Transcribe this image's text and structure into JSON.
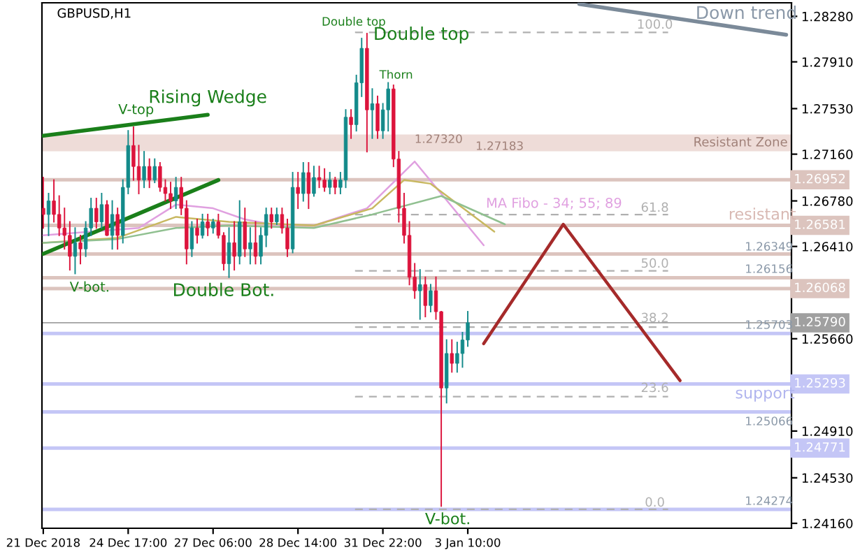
{
  "chart_data": {
    "type": "candlestick",
    "title": "GBPUSD,H1",
    "categories": [
      "21 Dec 2018",
      null,
      null,
      null,
      null,
      null,
      null,
      null,
      null,
      null,
      null,
      null,
      null,
      null,
      null,
      null,
      "24 Dec 17:00",
      null,
      null,
      null,
      null,
      null,
      null,
      null,
      null,
      null,
      null,
      null,
      null,
      null,
      null,
      null,
      "27 Dec 06:00",
      null,
      null,
      null,
      null,
      null,
      null,
      null,
      null,
      null,
      null,
      null,
      null,
      null,
      null,
      null,
      "28 Dec 14:00",
      null,
      null,
      null,
      null,
      null,
      null,
      null,
      null,
      null,
      null,
      null,
      null,
      null,
      null,
      null,
      "31 Dec 22:00",
      null,
      null,
      null,
      null,
      null,
      null,
      null,
      null,
      null,
      null,
      null,
      null,
      null,
      null,
      null,
      "3 Jan 10:00",
      null,
      null,
      null,
      null,
      null,
      null,
      null,
      null,
      null,
      null,
      null,
      null,
      null,
      null,
      null,
      null,
      null,
      null,
      null,
      null,
      null,
      null,
      null,
      null,
      null,
      null,
      null,
      null,
      null,
      null,
      null,
      null,
      null,
      null,
      null,
      null,
      null,
      null,
      null,
      null,
      null,
      null,
      null,
      null,
      null,
      null,
      null,
      null,
      null,
      null,
      null,
      null,
      null,
      null,
      null,
      null,
      null,
      null,
      null,
      null
    ],
    "ohlc": [
      [
        1.2672,
        1.2697,
        1.2656,
        1.2667
      ],
      [
        1.2667,
        1.2684,
        1.265,
        1.2678
      ],
      [
        1.2678,
        1.2695,
        1.2661,
        1.2667
      ],
      [
        1.2667,
        1.2682,
        1.265,
        1.2656
      ],
      [
        1.2656,
        1.2672,
        1.2639,
        1.265
      ],
      [
        1.265,
        1.2661,
        1.2622,
        1.2633
      ],
      [
        1.2633,
        1.2656,
        1.2619,
        1.2644
      ],
      [
        1.2644,
        1.265,
        1.2627,
        1.2639
      ],
      [
        1.2639,
        1.2661,
        1.2633,
        1.2656
      ],
      [
        1.2656,
        1.268,
        1.265,
        1.2672
      ],
      [
        1.2672,
        1.268,
        1.2656,
        1.2661
      ],
      [
        1.2661,
        1.2684,
        1.2656,
        1.2675
      ],
      [
        1.2675,
        1.2678,
        1.265,
        1.265
      ],
      [
        1.265,
        1.2678,
        1.2639,
        1.2667
      ],
      [
        1.2667,
        1.2672,
        1.2639,
        1.265
      ],
      [
        1.265,
        1.2695,
        1.2644,
        1.2689
      ],
      [
        1.2689,
        1.2735,
        1.2684,
        1.2723
      ],
      [
        1.2723,
        1.2738,
        1.2695,
        1.2706
      ],
      [
        1.2706,
        1.2723,
        1.2684,
        1.2695
      ],
      [
        1.2695,
        1.2718,
        1.2689,
        1.2706
      ],
      [
        1.2706,
        1.2712,
        1.2689,
        1.2695
      ],
      [
        1.2695,
        1.2712,
        1.2693,
        1.2706
      ],
      [
        1.2706,
        1.2709,
        1.2686,
        1.2689
      ],
      [
        1.2689,
        1.2695,
        1.2678,
        1.2684
      ],
      [
        1.2684,
        1.2693,
        1.2672,
        1.2678
      ],
      [
        1.2678,
        1.2697,
        1.2672,
        1.2689
      ],
      [
        1.2689,
        1.2697,
        1.2667,
        1.2672
      ],
      [
        1.2672,
        1.2678,
        1.2627,
        1.2639
      ],
      [
        1.2639,
        1.2661,
        1.2633,
        1.2656
      ],
      [
        1.2656,
        1.2663,
        1.2644,
        1.265
      ],
      [
        1.265,
        1.2667,
        1.2648,
        1.2661
      ],
      [
        1.2661,
        1.2667,
        1.265,
        1.2656
      ],
      [
        1.2656,
        1.2663,
        1.2652,
        1.2661
      ],
      [
        1.2661,
        1.2667,
        1.2648,
        1.265
      ],
      [
        1.265,
        1.2652,
        1.2622,
        1.2627
      ],
      [
        1.2627,
        1.2656,
        1.2616,
        1.2644
      ],
      [
        1.2644,
        1.2661,
        1.2622,
        1.2633
      ],
      [
        1.2633,
        1.2678,
        1.2627,
        1.2661
      ],
      [
        1.2661,
        1.2672,
        1.2633,
        1.2639
      ],
      [
        1.2639,
        1.2656,
        1.2627,
        1.2644
      ],
      [
        1.2644,
        1.2661,
        1.2627,
        1.2633
      ],
      [
        1.2633,
        1.2656,
        1.2627,
        1.265
      ],
      [
        1.265,
        1.2672,
        1.2641,
        1.2667
      ],
      [
        1.2667,
        1.2672,
        1.2656,
        1.2661
      ],
      [
        1.2661,
        1.2672,
        1.2659,
        1.2667
      ],
      [
        1.2667,
        1.2672,
        1.2652,
        1.2656
      ],
      [
        1.2656,
        1.2663,
        1.2633,
        1.2639
      ],
      [
        1.2639,
        1.2701,
        1.2636,
        1.2689
      ],
      [
        1.2689,
        1.2701,
        1.2672,
        1.2684
      ],
      [
        1.2684,
        1.2709,
        1.2678,
        1.2701
      ],
      [
        1.2701,
        1.2709,
        1.2672,
        1.2684
      ],
      [
        1.2684,
        1.2706,
        1.2682,
        1.2697
      ],
      [
        1.2697,
        1.2706,
        1.2689,
        1.2695
      ],
      [
        1.2695,
        1.2704,
        1.2686,
        1.2689
      ],
      [
        1.2689,
        1.2701,
        1.2684,
        1.2695
      ],
      [
        1.2695,
        1.2697,
        1.2684,
        1.2689
      ],
      [
        1.2689,
        1.2701,
        1.2684,
        1.2695
      ],
      [
        1.2695,
        1.2752,
        1.2689,
        1.2746
      ],
      [
        1.2746,
        1.2752,
        1.2729,
        1.274
      ],
      [
        1.274,
        1.278,
        1.2735,
        1.2774
      ],
      [
        1.2774,
        1.281,
        1.2763,
        1.2802
      ],
      [
        1.2802,
        1.2814,
        1.2718,
        1.2752
      ],
      [
        1.2752,
        1.2769,
        1.2729,
        1.2757
      ],
      [
        1.2757,
        1.2763,
        1.2729,
        1.2735
      ],
      [
        1.2735,
        1.2757,
        1.2729,
        1.2752
      ],
      [
        1.2752,
        1.2774,
        1.2735,
        1.2769
      ],
      [
        1.2769,
        1.2772,
        1.2706,
        1.2712
      ],
      [
        1.2712,
        1.2718,
        1.2661,
        1.2672
      ],
      [
        1.2672,
        1.2684,
        1.2644,
        1.265
      ],
      [
        1.265,
        1.2661,
        1.261,
        1.2616
      ],
      [
        1.2616,
        1.2627,
        1.2599,
        1.2605
      ],
      [
        1.2605,
        1.2622,
        1.2582,
        1.261
      ],
      [
        1.261,
        1.2616,
        1.2584,
        1.2593
      ],
      [
        1.2593,
        1.261,
        1.2588,
        1.2605
      ],
      [
        1.2605,
        1.2616,
        1.2582,
        1.2588
      ],
      [
        1.2588,
        1.2588,
        1.243,
        1.2526
      ],
      [
        1.2526,
        1.2565,
        1.2514,
        1.2554
      ],
      [
        1.2554,
        1.2565,
        1.2539,
        1.2546
      ],
      [
        1.2546,
        1.2563,
        1.2539,
        1.2554
      ],
      [
        1.2554,
        1.2571,
        1.2543,
        1.2565
      ],
      [
        1.2565,
        1.2588,
        1.256,
        1.2579
      ],
      null,
      null,
      null,
      null,
      null,
      null,
      null,
      null,
      null,
      null,
      null,
      null,
      null,
      null,
      null,
      null,
      null,
      null,
      null,
      null,
      null,
      null,
      null,
      null,
      null,
      null,
      null,
      null,
      null,
      null,
      null,
      null,
      null,
      null,
      null,
      null,
      null,
      null,
      null,
      null,
      null,
      null,
      null,
      null,
      null,
      null,
      null,
      null,
      null,
      null,
      null,
      null,
      null,
      null,
      null,
      null,
      null,
      null,
      null,
      null
    ],
    "colors": [
      "#dc143c",
      "#138a8a",
      "#dc143c",
      "#dc143c",
      "#dc143c",
      "#dc143c",
      "#138a8a",
      "#dc143c",
      "#138a8a",
      "#138a8a",
      "#dc143c",
      "#138a8a",
      "#dc143c",
      "#138a8a",
      "#dc143c",
      "#138a8a",
      "#138a8a",
      "#dc143c",
      "#dc143c",
      "#138a8a",
      "#dc143c",
      "#138a8a",
      "#dc143c",
      "#dc143c",
      "#dc143c",
      "#138a8a",
      "#dc143c",
      "#dc143c",
      "#138a8a",
      "#dc143c",
      "#138a8a",
      "#dc143c",
      "#138a8a",
      "#dc143c",
      "#dc143c",
      "#138a8a",
      "#dc143c",
      "#138a8a",
      "#dc143c",
      "#138a8a",
      "#dc143c",
      "#138a8a",
      "#138a8a",
      "#dc143c",
      "#138a8a",
      "#dc143c",
      "#dc143c",
      "#138a8a",
      "#dc143c",
      "#138a8a",
      "#dc143c",
      "#138a8a",
      "#dc143c",
      "#dc143c",
      "#138a8a",
      "#dc143c",
      "#138a8a",
      "#138a8a",
      "#dc143c",
      "#138a8a",
      "#138a8a",
      "#dc143c",
      "#138a8a",
      "#dc143c",
      "#138a8a",
      "#138a8a",
      "#dc143c",
      "#dc143c",
      "#dc143c",
      "#dc143c",
      "#dc143c",
      "#138a8a",
      "#dc143c",
      "#138a8a",
      "#dc143c",
      "#dc143c",
      "#138a8a",
      "#dc143c",
      "#138a8a",
      "#138a8a",
      "#138a8a",
      null,
      null,
      null,
      null,
      null,
      null,
      null,
      null,
      null,
      null,
      null,
      null,
      null,
      null,
      null,
      null,
      null,
      null,
      null,
      null,
      null,
      null,
      null,
      null,
      null,
      null,
      null,
      null,
      null,
      null,
      null,
      null,
      null,
      null,
      null,
      null,
      null,
      null,
      null,
      null,
      null,
      null,
      null,
      null,
      null,
      null,
      null,
      null,
      null,
      null,
      null,
      null,
      null,
      null,
      null,
      null,
      null,
      null,
      null,
      null
    ],
    "series": [
      {
        "type": "line",
        "color": "#e0a0e0",
        "values": [
          1.265,
          null,
          null,
          null,
          null,
          null,
          null,
          null,
          null,
          null,
          null,
          null,
          null,
          null,
          null,
          null,
          null,
          null,
          1.2656,
          null,
          null,
          null,
          null,
          null,
          null,
          1.2675,
          null,
          null,
          null,
          null,
          null,
          null,
          1.2672,
          null,
          null,
          null,
          null,
          null,
          1.2663,
          null,
          null,
          null,
          null,
          1.2659,
          null,
          null,
          null,
          null,
          null,
          null,
          null,
          1.2658,
          null,
          null,
          null,
          null,
          null,
          null,
          null,
          null,
          null,
          1.2672,
          null,
          null,
          null,
          null,
          null,
          null,
          null,
          null,
          1.271,
          null,
          null,
          null,
          null,
          null,
          null,
          null,
          null,
          null,
          null,
          null,
          null,
          1.2642,
          null,
          null,
          null,
          null,
          null,
          null,
          null,
          null,
          null,
          null,
          null,
          null,
          null,
          null,
          null,
          null,
          null,
          null,
          null,
          null,
          null,
          null,
          null,
          null,
          null,
          null,
          null,
          null,
          null,
          null,
          null,
          null,
          null,
          null,
          null,
          null,
          null,
          null,
          null,
          null,
          null,
          null,
          null,
          null,
          null,
          null,
          null,
          null,
          null,
          null,
          null,
          null,
          null,
          null,
          null,
          null,
          null
        ]
      },
      {
        "type": "line",
        "color": "#c8b860",
        "values": [
          1.2644,
          null,
          null,
          null,
          null,
          null,
          null,
          null,
          null,
          null,
          null,
          null,
          null,
          null,
          1.2648,
          null,
          null,
          null,
          null,
          null,
          null,
          null,
          null,
          null,
          null,
          1.2665,
          null,
          null,
          null,
          null,
          null,
          null,
          null,
          null,
          null,
          1.2661,
          null,
          null,
          null,
          null,
          null,
          null,
          null,
          null,
          null,
          null,
          null,
          null,
          null,
          null,
          null,
          1.2658,
          null,
          null,
          null,
          null,
          null,
          null,
          null,
          null,
          null,
          null,
          1.2672,
          null,
          null,
          null,
          null,
          null,
          1.2695,
          null,
          null,
          null,
          null,
          1.2692,
          null,
          null,
          null,
          null,
          null,
          null,
          null,
          null,
          null,
          null,
          null,
          1.2653,
          null,
          null,
          null,
          null,
          null,
          null,
          null,
          null,
          null,
          null,
          null,
          null,
          null,
          null,
          null,
          null,
          null,
          null,
          null,
          null,
          null,
          null,
          null,
          null,
          null,
          null,
          null,
          null,
          null,
          null,
          null,
          null,
          null,
          null,
          null,
          null,
          null,
          null,
          null,
          null,
          null,
          null,
          null,
          null,
          null,
          null,
          null,
          null,
          null,
          null,
          null,
          null,
          null,
          null,
          null
        ]
      },
      {
        "type": "line",
        "color": "#90c090",
        "values": [
          1.2644,
          null,
          null,
          null,
          null,
          null,
          null,
          null,
          null,
          null,
          null,
          null,
          null,
          null,
          1.2647,
          null,
          null,
          null,
          null,
          null,
          null,
          null,
          null,
          null,
          null,
          1.2656,
          null,
          null,
          null,
          null,
          null,
          null,
          null,
          null,
          null,
          1.2658,
          null,
          null,
          null,
          null,
          null,
          null,
          null,
          null,
          null,
          null,
          null,
          null,
          null,
          null,
          null,
          1.2656,
          null,
          null,
          null,
          null,
          null,
          null,
          null,
          null,
          null,
          null,
          1.2667,
          null,
          null,
          null,
          null,
          null,
          null,
          null,
          null,
          null,
          null,
          null,
          null,
          1.2682,
          null,
          null,
          null,
          null,
          null,
          null,
          null,
          null,
          null,
          null,
          null,
          1.2659,
          null,
          null,
          null,
          null,
          null,
          null,
          null,
          null,
          null,
          null,
          null,
          null,
          null,
          null,
          null,
          null,
          null,
          null,
          null,
          null,
          null,
          null,
          null,
          null,
          null,
          null,
          null,
          null,
          null,
          null,
          null,
          null,
          null,
          null,
          null,
          null,
          null,
          null,
          null,
          null,
          null,
          null,
          null,
          null,
          null,
          null,
          null,
          null,
          null,
          null,
          null,
          null,
          null
        ]
      },
      {
        "type": "line",
        "color": "#1a7f1a",
        "values": [
          1.2731,
          null,
          null,
          null,
          null,
          null,
          null,
          null,
          null,
          null,
          null,
          null,
          null,
          null,
          null,
          null,
          null,
          null,
          null,
          null,
          null,
          null,
          null,
          null,
          null,
          null,
          null,
          null,
          null,
          null,
          null,
          1.2748,
          null,
          null,
          null,
          null,
          null,
          null,
          null,
          null,
          null,
          null,
          null,
          null,
          null,
          null,
          null,
          null,
          null,
          null,
          null,
          null,
          null,
          null,
          null,
          null,
          null,
          null,
          null,
          null,
          null,
          null,
          null,
          null,
          null,
          null,
          null,
          null,
          null,
          null,
          null,
          null,
          null,
          null,
          null,
          null,
          null,
          null,
          null,
          null,
          null,
          null,
          null,
          null,
          null,
          null,
          null,
          null,
          null,
          null,
          null,
          null,
          null,
          null,
          null,
          null,
          null,
          null,
          null,
          null,
          null,
          null,
          null,
          null,
          null,
          null,
          null,
          null,
          null,
          null,
          null,
          null,
          null,
          null,
          null,
          null,
          null,
          null,
          null,
          null,
          null,
          null,
          null,
          null,
          null,
          null,
          null,
          null,
          null,
          null,
          null,
          null,
          null,
          null,
          null,
          null,
          null,
          null,
          null,
          null,
          null
        ]
      },
      {
        "type": "line",
        "color": "#1a7f1a",
        "values": [
          1.2635,
          null,
          null,
          null,
          null,
          null,
          null,
          null,
          null,
          null,
          null,
          null,
          null,
          null,
          null,
          null,
          null,
          null,
          null,
          null,
          null,
          null,
          null,
          null,
          null,
          null,
          null,
          null,
          null,
          null,
          null,
          null,
          null,
          1.2695,
          null,
          null,
          null,
          null,
          null,
          null,
          null,
          null,
          null,
          null,
          null,
          null,
          null,
          null,
          null,
          null,
          null,
          null,
          null,
          null,
          null,
          null,
          null,
          null,
          null,
          null,
          null,
          null,
          null,
          null,
          null,
          null,
          null,
          null,
          null,
          null,
          null,
          null,
          null,
          null,
          null,
          null,
          null,
          null,
          null,
          null,
          null,
          null,
          null,
          null,
          null,
          null,
          null,
          null,
          null,
          null,
          null,
          null,
          null,
          null,
          null,
          null,
          null,
          null,
          null,
          null,
          null,
          null,
          null,
          null,
          null,
          null,
          null,
          null,
          null,
          null,
          null,
          null,
          null,
          null,
          null,
          null,
          null,
          null,
          null,
          null,
          null,
          null,
          null,
          null,
          null,
          null,
          null,
          null,
          null,
          null,
          null,
          null,
          null,
          null,
          null,
          null,
          null,
          null,
          null,
          null,
          null
        ]
      },
      {
        "type": "line",
        "color": "#7b8a99",
        "values": [
          null,
          null,
          null,
          null,
          null,
          null,
          null,
          null,
          null,
          null,
          null,
          null,
          null,
          null,
          null,
          null,
          null,
          null,
          null,
          null,
          null,
          null,
          null,
          null,
          null,
          null,
          null,
          null,
          null,
          null,
          null,
          null,
          null,
          null,
          null,
          null,
          null,
          null,
          null,
          null,
          null,
          null,
          null,
          null,
          null,
          null,
          null,
          null,
          null,
          null,
          null,
          null,
          null,
          null,
          null,
          null,
          null,
          null,
          null,
          null,
          null,
          null,
          null,
          null,
          null,
          null,
          null,
          null,
          null,
          null,
          null,
          null,
          null,
          null,
          null,
          null,
          null,
          null,
          null,
          null,
          null,
          null,
          null,
          null,
          null,
          null,
          null,
          null,
          null,
          null,
          null,
          null,
          null,
          null,
          null,
          null,
          null,
          null,
          null,
          null,
          null,
          1.2838,
          null,
          null,
          null,
          null,
          null,
          null,
          null,
          null,
          null,
          null,
          null,
          null,
          null,
          null,
          null,
          null,
          null,
          null,
          null,
          null,
          null,
          null,
          null,
          null,
          null,
          null,
          null,
          null,
          null,
          null,
          null,
          null,
          null,
          null,
          null,
          null,
          null,
          null,
          1.2813
        ]
      },
      {
        "type": "line",
        "color": "#a52a2a",
        "values": [
          null,
          null,
          null,
          null,
          null,
          null,
          null,
          null,
          null,
          null,
          null,
          null,
          null,
          null,
          null,
          null,
          null,
          null,
          null,
          null,
          null,
          null,
          null,
          null,
          null,
          null,
          null,
          null,
          null,
          null,
          null,
          null,
          null,
          null,
          null,
          null,
          null,
          null,
          null,
          null,
          null,
          null,
          null,
          null,
          null,
          null,
          null,
          null,
          null,
          null,
          null,
          null,
          null,
          null,
          null,
          null,
          null,
          null,
          null,
          null,
          null,
          null,
          null,
          null,
          null,
          null,
          null,
          null,
          null,
          null,
          null,
          null,
          null,
          null,
          null,
          null,
          null,
          null,
          null,
          null,
          null,
          null,
          null,
          1.2562,
          null,
          null,
          null,
          null,
          null,
          null,
          null,
          null,
          null,
          null,
          null,
          null,
          null,
          null,
          1.2659,
          null,
          null,
          null,
          null,
          null,
          null,
          null,
          null,
          null,
          null,
          null,
          null,
          null,
          null,
          null,
          null,
          null,
          null,
          null,
          null,
          null,
          1.2532,
          null,
          null,
          null,
          null,
          null,
          null,
          null,
          null,
          null,
          null,
          null,
          null,
          null,
          null,
          null,
          null,
          null,
          null,
          null,
          null
        ]
      }
    ],
    "ylim": [
      1.2412,
      1.2839
    ],
    "yticks": [
      {
        "value": 1.2828,
        "label": "1.28280"
      },
      {
        "value": 1.2791,
        "label": "1.27910"
      },
      {
        "value": 1.2753,
        "label": "1.27530"
      },
      {
        "value": 1.2716,
        "label": "1.27160"
      },
      {
        "value": 1.2678,
        "label": "1.26780"
      },
      {
        "value": 1.2641,
        "label": "1.26410"
      },
      {
        "value": 1.2566,
        "label": "1.25660"
      },
      {
        "value": 1.2491,
        "label": "1.24910"
      },
      {
        "value": 1.2453,
        "label": "1.24530"
      },
      {
        "value": 1.2416,
        "label": "1.24160"
      }
    ],
    "bands": [
      {
        "axis": "y",
        "from": 1.27183,
        "to": 1.2732,
        "label": "Resistant Zone",
        "color": "#eedcd8"
      }
    ],
    "ref_lines": [
      {
        "axis": "y",
        "value": 1.26952,
        "label": "1.26952",
        "color": "#dcc4be"
      },
      {
        "axis": "y",
        "value": 1.26581,
        "label": "1.26581",
        "color": "#dcc4be"
      },
      {
        "axis": "y",
        "value": 1.26349,
        "color": "#dcc4be"
      },
      {
        "axis": "y",
        "value": 1.26156,
        "color": "#dcc4be"
      },
      {
        "axis": "y",
        "value": 1.26068,
        "label": "1.26068",
        "color": "#dcc4be"
      },
      {
        "axis": "y",
        "value": 1.2579,
        "label": "1.25790",
        "color": "#a0a0a0"
      },
      {
        "axis": "y",
        "value": 1.25703,
        "color": "#c4c6f6"
      },
      {
        "axis": "y",
        "value": 1.25293,
        "label": "1.25293",
        "color": "#c4c6f6"
      },
      {
        "axis": "y",
        "value": 1.25066,
        "color": "#c4c6f6"
      },
      {
        "axis": "y",
        "value": 1.24771,
        "label": "1.24771",
        "color": "#c4c6f6"
      },
      {
        "axis": "y",
        "value": 1.24274,
        "color": "#c4c6f6"
      },
      {
        "axis": "y",
        "value": 1.2815,
        "color": "#b0b0b0",
        "line_style": "dashed"
      },
      {
        "axis": "y",
        "value": 1.26669,
        "color": "#b0b0b0",
        "line_style": "dashed"
      },
      {
        "axis": "y",
        "value": 1.26212,
        "color": "#b0b0b0",
        "line_style": "dashed"
      },
      {
        "axis": "y",
        "value": 1.25755,
        "color": "#b0b0b0",
        "line_style": "dashed"
      },
      {
        "axis": "y",
        "value": 1.25189,
        "color": "#b0b0b0",
        "line_style": "dashed"
      },
      {
        "axis": "y",
        "value": 1.24274,
        "color": "#b0b0b0",
        "line_style": "dashed"
      }
    ],
    "annotations": [
      {
        "text": "V-top",
        "y": 1.2738
      },
      {
        "text": "Rising Wedge",
        "y": 1.2748
      },
      "V-bot.",
      {
        "text": "Double Bot.",
        "y": 1.2616
      },
      {
        "text": "Double top",
        "y": 1.2814
      },
      {
        "text": "Double top",
        "y": 1.2814
      },
      {
        "text": "Thorn",
        "y": 1.2772
      },
      "Down trend",
      "MA Fibo - 34; 55; 89",
      "resistant",
      "support",
      "V-bot.",
      "1.27320",
      "1.27183",
      "1.26349",
      "1.26156",
      "1.25703",
      "1.25066",
      "1.24274",
      "100.0",
      "61.8",
      "50.0",
      "38.2",
      "23.6",
      "0.0"
    ]
  }
}
